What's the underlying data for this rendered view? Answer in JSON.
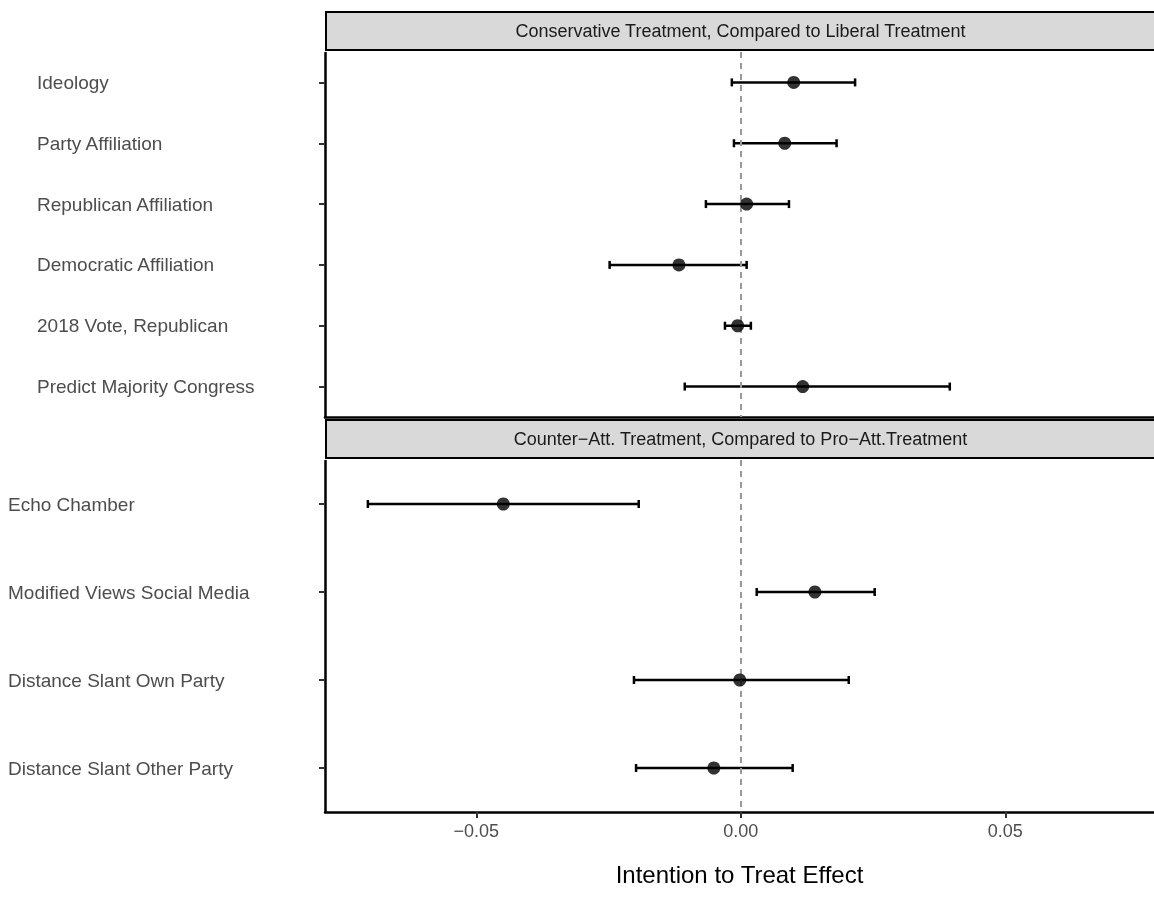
{
  "chart_data": [
    {
      "type": "scatter",
      "orientation": "horizontal",
      "title": "Conservative Treatment, Compared to Liberal Treatment",
      "categories": [
        "Ideology",
        "Party Affiliation",
        "Republican Affiliation",
        "Democratic Affiliation",
        "2018 Vote, Republican",
        "Predict Majority Congress"
      ],
      "values": [
        0.01,
        0.0083,
        0.0011,
        -0.0117,
        -0.0006,
        0.0117
      ],
      "errors": [
        [
          -0.0017,
          0.0216
        ],
        [
          -0.0013,
          0.0181
        ],
        [
          -0.0066,
          0.0091
        ],
        [
          -0.0248,
          0.0011
        ],
        [
          -0.003,
          0.0019
        ],
        [
          -0.0106,
          0.0395
        ]
      ],
      "color": "#000000",
      "marker": "circle",
      "xlim": [
        -0.0786,
        0.0781
      ],
      "tick_labels": "y",
      "grid": false,
      "ref_lines": [
        {
          "axis": "x",
          "value": 0,
          "label": null,
          "color": "#999999",
          "line_style": "dashed"
        }
      ]
    },
    {
      "type": "scatter",
      "orientation": "horizontal",
      "title": "Counter−Att. Treatment, Compared to Pro−Att.Treatment",
      "categories": [
        "Echo Chamber",
        "Modified Views Social Media",
        "Distance Slant Own Party",
        "Distance Slant Other Party"
      ],
      "values": [
        -0.0449,
        0.014,
        -0.0002,
        -0.0051
      ],
      "errors": [
        [
          -0.0705,
          -0.0193
        ],
        [
          0.003,
          0.0253
        ],
        [
          -0.0202,
          0.0204
        ],
        [
          -0.0198,
          0.0098
        ]
      ],
      "color": "#000000",
      "marker": "circle",
      "xlabel": "Intention to Treat Effect",
      "xlim": [
        -0.0786,
        0.0781
      ],
      "xticks": [
        {
          "value": -0.05,
          "label": "−0.05"
        },
        {
          "value": 0,
          "label": "0.00"
        },
        {
          "value": 0.05,
          "label": "0.05"
        }
      ],
      "grid": false,
      "ref_lines": [
        {
          "axis": "x",
          "value": 0,
          "label": null,
          "color": "#999999",
          "line_style": "dashed"
        }
      ]
    }
  ]
}
